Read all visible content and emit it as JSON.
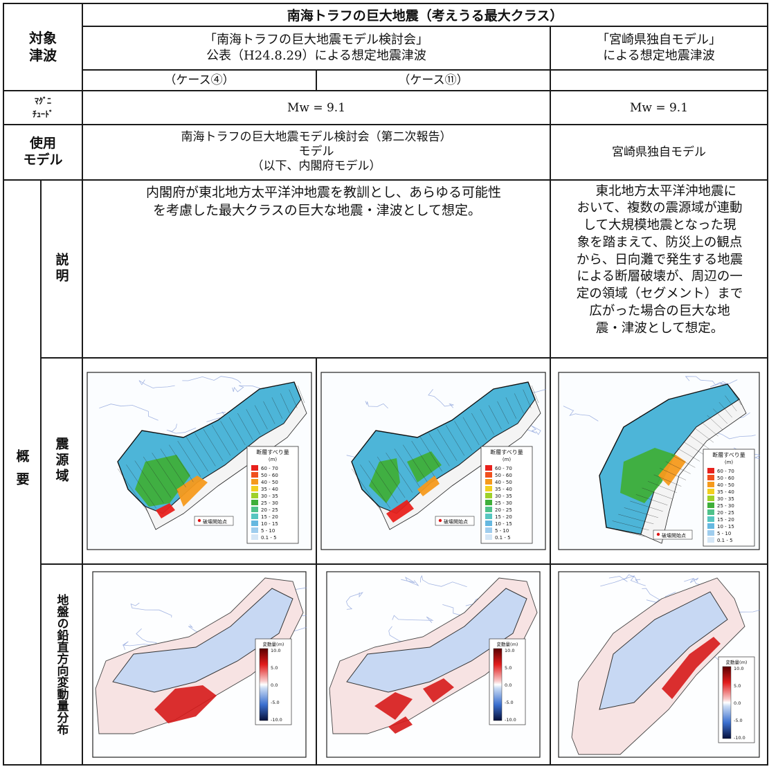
{
  "header": {
    "main_title": "南海トラフの巨大地震（考えうる最大クラス）",
    "target_tsunami_label_line1": "対象",
    "target_tsunami_label_line2": "津波",
    "cabinet_group_line1": "「南海トラフの巨大地震モデル検討会」",
    "cabinet_group_line2": "公表（H24.8.29）による想定地震津波",
    "miyazaki_group_line1": "「宮崎県独自モデル」",
    "miyazaki_group_line2": "による想定地震津波",
    "case4": "（ケース④）",
    "case11": "（ケース⑪）"
  },
  "magnitude": {
    "label_line1": "ﾏｸﾞﾆ",
    "label_line2": "ﾁｭｰﾄﾞ",
    "cabinet_value": "Mw = 9.1",
    "miyazaki_value": "Mw = 9.1"
  },
  "model": {
    "label_line1": "使用",
    "label_line2": "モデル",
    "cabinet_line1": "南海トラフの巨大地震モデル検討会（第二次報告）",
    "cabinet_line2": "モデル",
    "cabinet_line3": "（以下、内閣府モデル）",
    "miyazaki": "宮崎県独自モデル"
  },
  "overview": {
    "label": "概要",
    "explanation_label": "説明",
    "cabinet_desc_lines": [
      "　内閣府が東北地方太平洋沖地震を教訓とし、あらゆる可能性",
      "を考慮した最大クラスの巨大な地震・津波として想定。"
    ],
    "miyazaki_desc_lines": [
      "　東北地方太平洋沖地震に",
      "おいて、複数の震源域が連動",
      "して大規模地震となった現",
      "象を踏まえて、防災上の観点",
      "から、日向灘で発生する地震",
      "による断層破壊が、周辺の一",
      "定の領域（セグメント）まで",
      "広がった場合の巨大な地",
      "震・津波として想定。"
    ],
    "source_area_label": "震源域",
    "deformation_label": "地盤の鉛直方向変動量分布"
  },
  "slip_legend": {
    "title": "断層すべり量",
    "unit": "(m)",
    "ranges": [
      "60 - 70",
      "50 - 60",
      "40 - 50",
      "35 - 40",
      "30 - 35",
      "25 - 30",
      "20 - 25",
      "15 - 20",
      "10 - 15",
      "5 - 10",
      "0.1 - 5"
    ],
    "colors": [
      "#e8211c",
      "#f0501e",
      "#f59a1c",
      "#f2cf1f",
      "#9ed12a",
      "#3faf3a",
      "#4fc28a",
      "#57c6c0",
      "#66b8e0",
      "#9fcdee",
      "#d4e6f6"
    ],
    "hypocenter_note": "破壊開始点"
  },
  "deform_legend": {
    "title": "変動量(m)",
    "ticks": [
      "10.0",
      "5.0",
      "0.0",
      "-5.0",
      "-10.0"
    ]
  }
}
